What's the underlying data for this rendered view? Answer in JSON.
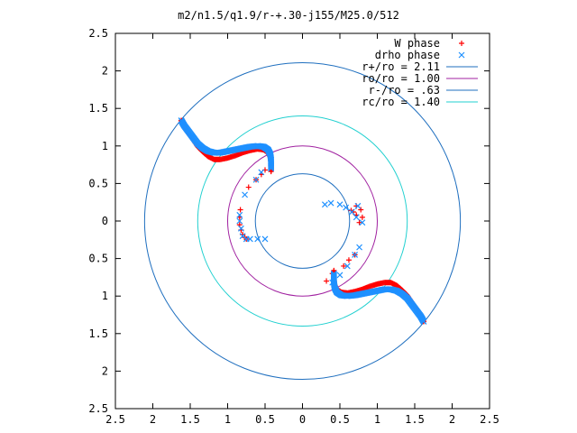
{
  "chart_data": {
    "type": "scatter",
    "title": "m2/n1.5/q1.9/r-+.30-j155/M25.0/512",
    "xlabel": "",
    "ylabel": "",
    "xlim": [
      -2.5,
      2.5
    ],
    "ylim": [
      -2.5,
      2.5
    ],
    "x_ticks": [
      -2.5,
      -2,
      -1.5,
      -1,
      -0.5,
      0,
      0.5,
      1,
      1.5,
      2,
      2.5
    ],
    "x_tick_labels": [
      "2.5",
      "2",
      "1.5",
      "1",
      "0.5",
      "0",
      "0.5",
      "1",
      "1.5",
      "2",
      "2.5"
    ],
    "y_ticks": [
      2.5,
      2,
      1.5,
      1,
      0.5,
      0,
      -0.5,
      -1,
      -1.5,
      -2,
      -2.5
    ],
    "y_tick_labels": [
      "2.5",
      "2",
      "1.5",
      "1",
      "0.5",
      "0",
      "0.5",
      "1",
      "1.5",
      "2",
      "2.5"
    ],
    "grid": false,
    "legend_position": "top-right",
    "series": [
      {
        "name": "W phase",
        "marker": "plus",
        "color": "#ff0000",
        "arcs": [
          {
            "x": [
              -1.62,
              -1.58,
              -1.52,
              -1.46,
              -1.4,
              -1.33,
              -1.26,
              -1.18,
              -1.1,
              -1.0,
              -0.9,
              -0.8,
              -0.7,
              -0.6,
              -0.52,
              -0.46,
              -0.43,
              -0.42,
              -0.42,
              -0.42
            ],
            "y": [
              1.34,
              1.26,
              1.17,
              1.08,
              0.99,
              0.92,
              0.86,
              0.82,
              0.82,
              0.84,
              0.87,
              0.91,
              0.94,
              0.96,
              0.95,
              0.91,
              0.85,
              0.78,
              0.72,
              0.66
            ]
          },
          {
            "x": [
              1.62,
              1.58,
              1.52,
              1.46,
              1.4,
              1.33,
              1.26,
              1.18,
              1.1,
              1.0,
              0.9,
              0.8,
              0.7,
              0.6,
              0.52,
              0.46,
              0.43,
              0.42,
              0.42,
              0.42
            ],
            "y": [
              -1.34,
              -1.26,
              -1.17,
              -1.08,
              -0.99,
              -0.92,
              -0.86,
              -0.82,
              -0.82,
              -0.84,
              -0.87,
              -0.91,
              -0.94,
              -0.96,
              -0.95,
              -0.91,
              -0.85,
              -0.78,
              -0.72,
              -0.66
            ]
          }
        ],
        "points": {
          "x": [
            -0.72,
            -0.62,
            -0.55,
            -0.5,
            -0.83,
            -0.84,
            -0.84,
            -0.82,
            -0.8,
            -0.77,
            -0.75,
            0.32,
            0.4,
            0.55,
            0.62,
            0.7,
            0.72,
            0.78,
            0.8,
            0.76,
            0.72,
            0.68,
            0.65
          ],
          "y": [
            0.45,
            0.55,
            0.62,
            0.68,
            0.15,
            0.05,
            -0.05,
            -0.12,
            -0.18,
            -0.22,
            -0.24,
            -0.8,
            -0.7,
            -0.6,
            -0.52,
            -0.45,
            0.2,
            0.15,
            0.05,
            -0.02,
            0.08,
            0.12,
            0.14
          ]
        }
      },
      {
        "name": "drho phase",
        "marker": "cross",
        "color": "#1e90ff",
        "arcs": [
          {
            "x": [
              -1.62,
              -1.58,
              -1.52,
              -1.46,
              -1.4,
              -1.33,
              -1.26,
              -1.18,
              -1.1,
              -1.0,
              -0.9,
              -0.8,
              -0.7,
              -0.6,
              -0.52,
              -0.46,
              -0.43,
              -0.42,
              -0.42,
              -0.42
            ],
            "y": [
              1.34,
              1.27,
              1.19,
              1.11,
              1.03,
              0.97,
              0.93,
              0.91,
              0.91,
              0.93,
              0.95,
              0.97,
              0.99,
              1.0,
              0.99,
              0.95,
              0.89,
              0.82,
              0.76,
              0.7
            ]
          },
          {
            "x": [
              1.62,
              1.58,
              1.52,
              1.46,
              1.4,
              1.33,
              1.26,
              1.18,
              1.1,
              1.0,
              0.9,
              0.8,
              0.7,
              0.6,
              0.52,
              0.46,
              0.43,
              0.42,
              0.42,
              0.42
            ],
            "y": [
              -1.34,
              -1.27,
              -1.19,
              -1.11,
              -1.03,
              -0.97,
              -0.93,
              -0.91,
              -0.91,
              -0.93,
              -0.95,
              -0.97,
              -0.99,
              -1.0,
              -0.99,
              -0.95,
              -0.89,
              -0.82,
              -0.76,
              -0.7
            ]
          }
        ],
        "points": {
          "x": [
            -0.55,
            -0.62,
            -0.77,
            -0.84,
            -0.84,
            -0.82,
            -0.8,
            -0.75,
            -0.7,
            -0.6,
            -0.5,
            0.3,
            0.38,
            0.5,
            0.58,
            0.66,
            0.72,
            0.4,
            0.5,
            0.6,
            0.7,
            0.76,
            0.8,
            0.74
          ],
          "y": [
            0.65,
            0.55,
            0.35,
            0.08,
            0.0,
            -0.1,
            -0.2,
            -0.24,
            -0.24,
            -0.24,
            -0.24,
            0.22,
            0.24,
            0.22,
            0.18,
            0.12,
            0.05,
            -0.82,
            -0.72,
            -0.6,
            -0.45,
            -0.35,
            -0.02,
            0.2
          ]
        }
      }
    ],
    "circles": [
      {
        "name": "r+/ro = 2.11",
        "radius": 2.11,
        "color": "#1f6fbf"
      },
      {
        "name": "ro/ro = 1.00",
        "radius": 1.0,
        "color": "#a020a0"
      },
      {
        "name": "r-/ro = .63",
        "radius": 0.63,
        "color": "#1f6fbf"
      },
      {
        "name": "rc/ro = 1.40",
        "radius": 1.4,
        "color": "#22d0d0"
      }
    ]
  }
}
